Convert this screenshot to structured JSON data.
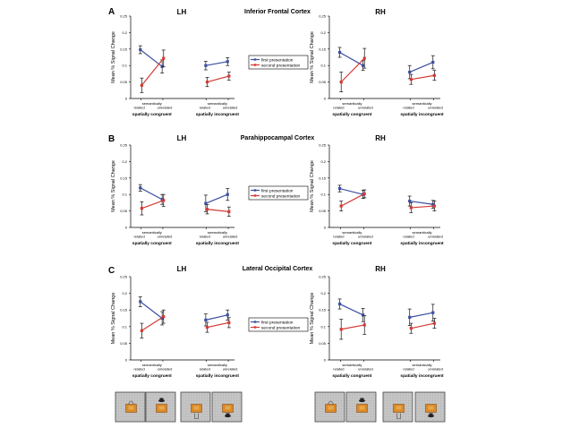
{
  "figure": {
    "sections": [
      {
        "letter": "A",
        "region": "Inferior Frontal Cortex"
      },
      {
        "letter": "B",
        "region": "Parahippocampal Cortex"
      },
      {
        "letter": "C",
        "region": "Lateral Occipital Cortex"
      }
    ],
    "hemispheres": [
      "LH",
      "RH"
    ],
    "legend": {
      "first": "first presentation",
      "second": "second presentation"
    },
    "category_labels": {
      "line1": "semantically",
      "related": "related",
      "unrelated": "unrelated"
    },
    "group_labels": {
      "congruent": "spatially congruent",
      "incongruent": "spatially incongruent"
    },
    "colors": {
      "first": "#3b4fa0",
      "second": "#d43a34"
    }
  },
  "chart_data": [
    {
      "type": "line",
      "section": "A",
      "hemisphere": "LH",
      "title": "LH",
      "ylabel": "Mean % Signal Change",
      "ylim": [
        0,
        0.25
      ],
      "yticks": [
        "0",
        "0.05",
        "0.1",
        "0.15",
        "0.2",
        "0.25"
      ],
      "categories": [
        "congruent-related",
        "congruent-unrelated",
        "incongruent-related",
        "incongruent-unrelated"
      ],
      "series": [
        {
          "name": "first presentation",
          "values": [
            0.148,
            0.097,
            0.1,
            0.112
          ],
          "errors": [
            0.012,
            0.02,
            0.013,
            0.012
          ]
        },
        {
          "name": "second presentation",
          "values": [
            0.04,
            0.122,
            0.05,
            0.068
          ],
          "errors": [
            0.022,
            0.025,
            0.014,
            0.012
          ]
        }
      ]
    },
    {
      "type": "line",
      "section": "A",
      "hemisphere": "RH",
      "title": "RH",
      "ylabel": "Mean % Signal Change",
      "ylim": [
        0,
        0.25
      ],
      "yticks": [
        "0",
        "0.05",
        "0.1",
        "0.15",
        "0.2",
        "0.25"
      ],
      "categories": [
        "congruent-related",
        "congruent-unrelated",
        "incongruent-related",
        "incongruent-unrelated"
      ],
      "series": [
        {
          "name": "first presentation",
          "values": [
            0.14,
            0.1,
            0.08,
            0.11
          ],
          "errors": [
            0.015,
            0.015,
            0.02,
            0.02
          ]
        },
        {
          "name": "second presentation",
          "values": [
            0.05,
            0.122,
            0.058,
            0.07
          ],
          "errors": [
            0.03,
            0.03,
            0.015,
            0.015
          ]
        }
      ]
    },
    {
      "type": "line",
      "section": "B",
      "hemisphere": "LH",
      "title": "LH",
      "ylabel": "Mean % Signal Change",
      "ylim": [
        0,
        0.25
      ],
      "yticks": [
        "0",
        "0.05",
        "0.1",
        "0.15",
        "0.2",
        "0.25"
      ],
      "categories": [
        "congruent-related",
        "congruent-unrelated",
        "incongruent-related",
        "incongruent-unrelated"
      ],
      "series": [
        {
          "name": "first presentation",
          "values": [
            0.12,
            0.085,
            0.073,
            0.1
          ],
          "errors": [
            0.01,
            0.015,
            0.025,
            0.018
          ]
        },
        {
          "name": "second presentation",
          "values": [
            0.058,
            0.082,
            0.055,
            0.048
          ],
          "errors": [
            0.02,
            0.018,
            0.014,
            0.014
          ]
        }
      ]
    },
    {
      "type": "line",
      "section": "B",
      "hemisphere": "RH",
      "title": "RH",
      "ylabel": "Mean % Signal Change",
      "ylim": [
        0,
        0.25
      ],
      "yticks": [
        "0",
        "0.05",
        "0.1",
        "0.15",
        "0.2",
        "0.25"
      ],
      "categories": [
        "congruent-related",
        "congruent-unrelated",
        "incongruent-related",
        "incongruent-unrelated"
      ],
      "series": [
        {
          "name": "first presentation",
          "values": [
            0.118,
            0.1,
            0.08,
            0.07
          ],
          "errors": [
            0.01,
            0.012,
            0.015,
            0.012
          ]
        },
        {
          "name": "second presentation",
          "values": [
            0.065,
            0.102,
            0.06,
            0.065
          ],
          "errors": [
            0.015,
            0.012,
            0.015,
            0.015
          ]
        }
      ]
    },
    {
      "type": "line",
      "section": "C",
      "hemisphere": "LH",
      "title": "LH",
      "ylabel": "Mean % Signal Change",
      "ylim": [
        0,
        0.25
      ],
      "yticks": [
        "0",
        "0.05",
        "0.1",
        "0.15",
        "0.2",
        "0.25"
      ],
      "categories": [
        "congruent-related",
        "congruent-unrelated",
        "incongruent-related",
        "incongruent-unrelated"
      ],
      "series": [
        {
          "name": "first presentation",
          "values": [
            0.175,
            0.125,
            0.12,
            0.135
          ],
          "errors": [
            0.015,
            0.02,
            0.018,
            0.015
          ]
        },
        {
          "name": "second presentation",
          "values": [
            0.088,
            0.13,
            0.098,
            0.112
          ],
          "errors": [
            0.022,
            0.02,
            0.015,
            0.015
          ]
        }
      ]
    },
    {
      "type": "line",
      "section": "C",
      "hemisphere": "RH",
      "title": "RH",
      "ylabel": "Mean % Signal Change",
      "ylim": [
        0,
        0.25
      ],
      "yticks": [
        "0",
        "0.05",
        "0.1",
        "0.15",
        "0.2",
        "0.25"
      ],
      "categories": [
        "congruent-related",
        "congruent-unrelated",
        "incongruent-related",
        "incongruent-unrelated"
      ],
      "series": [
        {
          "name": "first presentation",
          "values": [
            0.168,
            0.135,
            0.128,
            0.142
          ],
          "errors": [
            0.015,
            0.02,
            0.025,
            0.025
          ]
        },
        {
          "name": "second presentation",
          "values": [
            0.092,
            0.105,
            0.095,
            0.11
          ],
          "errors": [
            0.03,
            0.028,
            0.015,
            0.015
          ]
        }
      ]
    }
  ]
}
